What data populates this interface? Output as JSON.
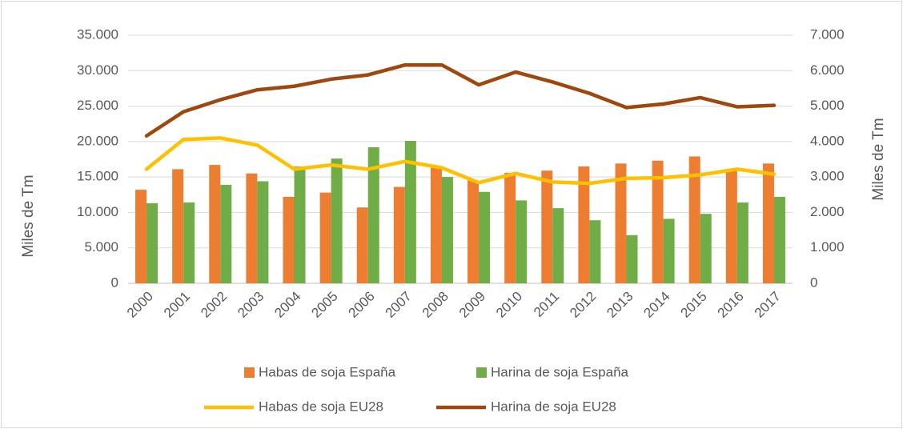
{
  "chart_data": {
    "type": "bar_line",
    "y_label": "Miles de Tm",
    "y2_label": "Miles de Tm",
    "categories": [
      "2000",
      "2001",
      "2002",
      "2003",
      "2004",
      "2005",
      "2006",
      "2007",
      "2008",
      "2009",
      "2010",
      "2011",
      "2012",
      "2013",
      "2014",
      "2015",
      "2016",
      "2017"
    ],
    "series": [
      {
        "name": "Habas de soja España",
        "type": "bar",
        "axis": "y2",
        "color": "#ed7d31",
        "values": [
          2640,
          3220,
          3340,
          3100,
          2440,
          2560,
          2140,
          2720,
          3260,
          2900,
          3120,
          3180,
          3300,
          3380,
          3460,
          3580,
          3200,
          3380
        ]
      },
      {
        "name": "Harina de soja España",
        "type": "bar",
        "axis": "y2",
        "color": "#70ad47",
        "values": [
          2260,
          2280,
          2780,
          2880,
          3300,
          3520,
          3840,
          4020,
          3000,
          2580,
          2340,
          2120,
          1780,
          1360,
          1820,
          1960,
          2280,
          2440
        ]
      },
      {
        "name": "Habas de soja EU28",
        "type": "line",
        "color": "#ffc000",
        "values": [
          16100,
          20300,
          20500,
          19500,
          16100,
          16700,
          16100,
          17200,
          16300,
          14200,
          15500,
          14300,
          14100,
          14800,
          14900,
          15300,
          16100,
          15400
        ]
      },
      {
        "name": "Harina de soja EU28",
        "type": "line",
        "color": "#9e480e",
        "values": [
          20800,
          24200,
          25900,
          27300,
          27800,
          28800,
          29400,
          30800,
          30800,
          28000,
          29800,
          28400,
          26800,
          24800,
          25300,
          26200,
          24900,
          25100
        ]
      }
    ],
    "ylim": [
      0,
      35000
    ],
    "yticks": [
      0,
      {
        "value": 5000,
        "label": "5.000"
      },
      {
        "value": 10000,
        "label": "10.000"
      },
      {
        "value": 15000,
        "label": "15.000"
      },
      {
        "value": 20000,
        "label": "20.000"
      },
      {
        "value": 25000,
        "label": "25.000"
      },
      {
        "value": 30000,
        "label": "30.000"
      },
      {
        "value": 35000,
        "label": "35.000"
      }
    ],
    "y2lim": [
      0,
      7000
    ],
    "y2ticks": [
      0,
      {
        "value": 1000,
        "label": "1.000"
      },
      {
        "value": 2000,
        "label": "2.000"
      },
      {
        "value": 3000,
        "label": "3.000"
      },
      {
        "value": 4000,
        "label": "4.000"
      },
      {
        "value": 5000,
        "label": "5.000"
      },
      {
        "value": 6000,
        "label": "6.000"
      },
      {
        "value": 7000,
        "label": "7.000"
      }
    ],
    "grid": true
  }
}
